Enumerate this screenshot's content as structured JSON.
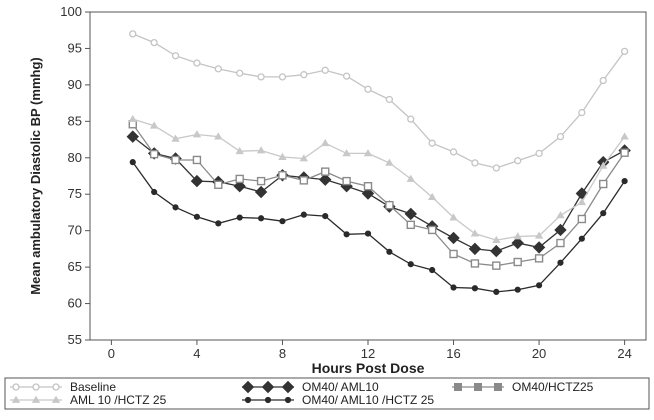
{
  "chart_data": {
    "type": "line",
    "title": "",
    "xlabel": "Hours Post Dose",
    "ylabel": "Mean ambulatory Diastolic BP (mmhg)",
    "xlim": [
      -1,
      25
    ],
    "ylim": [
      55,
      100
    ],
    "xticks": [
      0,
      4,
      8,
      12,
      16,
      20,
      24
    ],
    "yticks": [
      55,
      60,
      65,
      70,
      75,
      80,
      85,
      90,
      95,
      100
    ],
    "grid": false,
    "legend_position": "bottom",
    "series": [
      {
        "name": "Baseline",
        "color": "#c4c4c4",
        "marker": "open-circle",
        "x": [
          1,
          2,
          3,
          4,
          5,
          6,
          7,
          8,
          9,
          10,
          11,
          12,
          13,
          14,
          15,
          16,
          17,
          18,
          19,
          20,
          21,
          22,
          23,
          24
        ],
        "values": [
          97,
          95.8,
          94,
          93,
          92.2,
          91.6,
          91.1,
          91.1,
          91.4,
          92,
          91.2,
          89.4,
          88,
          85.3,
          82,
          80.8,
          79.3,
          78.6,
          79.6,
          80.6,
          82.9,
          86.2,
          90.6,
          94.6
        ]
      },
      {
        "name": "OM40/ AML10",
        "color": "#333333",
        "marker": "diamond",
        "x": [
          1,
          2,
          3,
          4,
          5,
          6,
          7,
          8,
          9,
          10,
          11,
          12,
          13,
          14,
          15,
          16,
          17,
          18,
          19,
          20,
          21,
          22,
          23,
          24
        ],
        "values": [
          82.9,
          80.6,
          79.9,
          76.8,
          76.7,
          76.1,
          75.3,
          77.6,
          77.3,
          77,
          76.1,
          75.1,
          73.3,
          72.3,
          70.6,
          69,
          67.5,
          67.2,
          68.3,
          67.7,
          70.1,
          75.1,
          79.4,
          81
        ]
      },
      {
        "name": "OM40/HCTZ25",
        "color": "#8a8a8a",
        "marker": "open-square",
        "x": [
          1,
          2,
          3,
          4,
          5,
          6,
          7,
          8,
          9,
          10,
          11,
          12,
          13,
          14,
          15,
          16,
          17,
          18,
          19,
          20,
          21,
          22,
          23,
          24
        ],
        "values": [
          84.6,
          80.5,
          79.7,
          79.7,
          76.3,
          77.1,
          76.8,
          77.6,
          76.9,
          78.1,
          76.8,
          76.1,
          73.5,
          70.8,
          70.1,
          66.8,
          65.5,
          65.2,
          65.7,
          66.2,
          68.3,
          71.6,
          76.4,
          80.7
        ]
      },
      {
        "name": "AML 10 /HCTZ 25",
        "color": "#c8c8c8",
        "marker": "triangle",
        "x": [
          1,
          2,
          3,
          4,
          5,
          6,
          7,
          8,
          9,
          10,
          11,
          12,
          13,
          14,
          15,
          16,
          17,
          18,
          19,
          20,
          21,
          22,
          23,
          24
        ],
        "values": [
          85.3,
          84.4,
          82.6,
          83.2,
          82.9,
          80.9,
          81,
          80.1,
          79.9,
          82,
          80.6,
          80.6,
          79.3,
          77.1,
          74.6,
          71.8,
          69.6,
          68.7,
          69.2,
          69.3,
          72.1,
          73.9,
          78.9,
          82.9
        ]
      },
      {
        "name": "OM40/ AML10 /HCTZ 25",
        "color": "#2a2a2a",
        "marker": "filled-circle",
        "x": [
          1,
          2,
          3,
          4,
          5,
          6,
          7,
          8,
          9,
          10,
          11,
          12,
          13,
          14,
          15,
          16,
          17,
          18,
          19,
          20,
          21,
          22,
          23,
          24
        ],
        "values": [
          79.4,
          75.3,
          73.2,
          71.9,
          71,
          71.8,
          71.7,
          71.3,
          72.2,
          72,
          69.5,
          69.6,
          67.1,
          65.4,
          64.6,
          62.2,
          62.1,
          61.6,
          61.9,
          62.5,
          65.6,
          68.9,
          72.4,
          76.8
        ]
      }
    ]
  }
}
